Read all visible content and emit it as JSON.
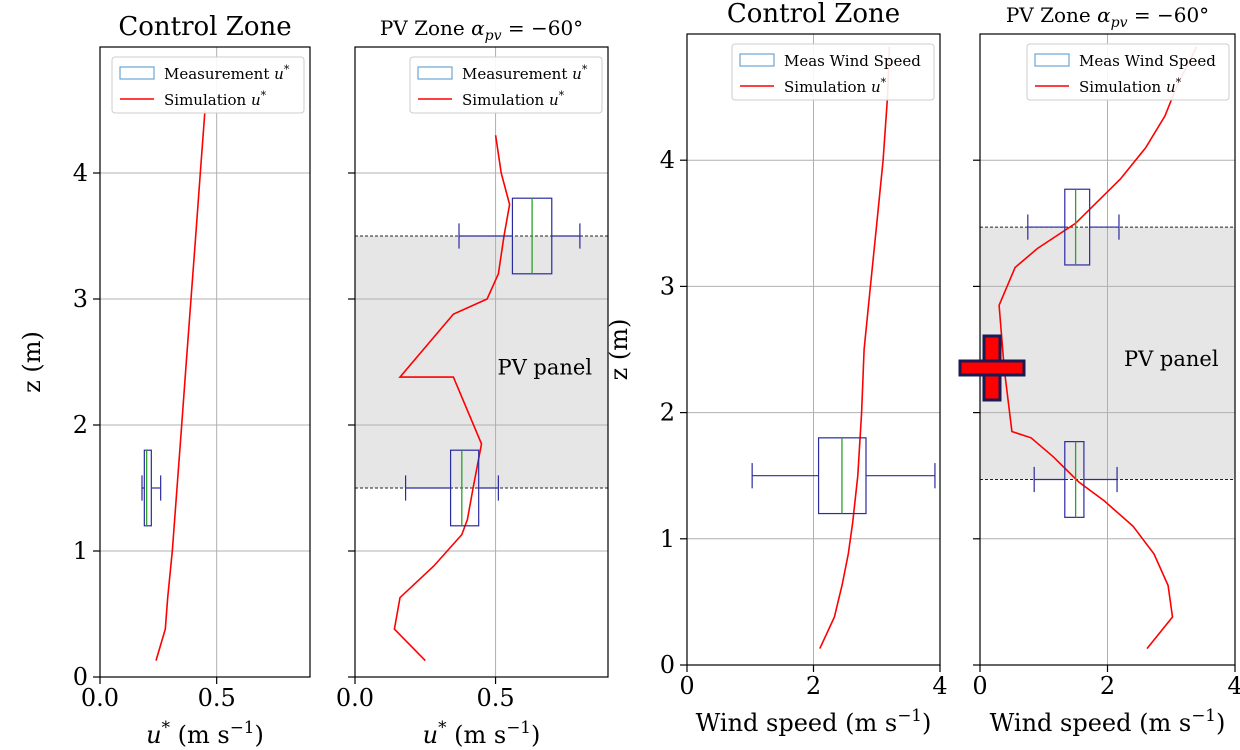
{
  "shared": {
    "ylabel": "z (m)",
    "band_label": "PV panel",
    "colors": {
      "sim_line": "#ff0000",
      "box_edge": "#2b2ba0",
      "median": "#2ca02c",
      "band_fill": "#e6e6e6",
      "legend_patch": "#6aa6d6",
      "grid": "#b0b0b0"
    }
  },
  "chart_data": [
    {
      "type": "box+line",
      "title": "Control Zone",
      "xlabel": "u* (m s−1)",
      "xlim": [
        0,
        0.9
      ],
      "ylim": [
        0,
        5
      ],
      "xticks": [
        0.0,
        0.5
      ],
      "xtick_labels": [
        "0.0",
        "0.5"
      ],
      "yticks": [
        0,
        1,
        2,
        3,
        4
      ],
      "ytick_labels": [
        "0",
        "1",
        "2",
        "3",
        "4"
      ],
      "legend": [
        "Measurement u*",
        "Simulation u*"
      ],
      "legend_position": "top-right",
      "grid": true,
      "band": null,
      "boxes": [
        {
          "z": 1.5,
          "whislo": 0.18,
          "q1": 0.19,
          "med": 0.2,
          "q3": 0.22,
          "whishi": 0.26,
          "half": 0.3
        }
      ],
      "simulation": {
        "x": [
          0.24,
          0.28,
          0.29,
          0.31,
          0.33,
          0.35,
          0.37,
          0.39,
          0.41,
          0.43,
          0.45
        ],
        "z": [
          0.13,
          0.38,
          0.63,
          1.0,
          1.5,
          2.0,
          2.5,
          3.0,
          3.5,
          4.0,
          4.5
        ]
      }
    },
    {
      "type": "box+line",
      "title": "PV Zone",
      "title_math": "αpv = −60°",
      "xlabel": "u* (m s−1)",
      "xlim": [
        0,
        0.9
      ],
      "ylim": [
        0,
        5
      ],
      "xticks": [
        0.0,
        0.5
      ],
      "xtick_labels": [
        "0.0",
        "0.5"
      ],
      "yticks": [
        0,
        1,
        2,
        3,
        4
      ],
      "ytick_labels": [],
      "legend": [
        "Measurement u*",
        "Simulation u*"
      ],
      "legend_position": "top-right",
      "grid": true,
      "band": [
        1.5,
        3.5
      ],
      "boxes": [
        {
          "z": 1.5,
          "whislo": 0.18,
          "q1": 0.34,
          "med": 0.38,
          "q3": 0.44,
          "whishi": 0.51,
          "half": 0.3
        },
        {
          "z": 3.5,
          "whislo": 0.37,
          "q1": 0.56,
          "med": 0.63,
          "q3": 0.7,
          "whishi": 0.8,
          "half": 0.3
        }
      ],
      "simulation": {
        "x": [
          0.25,
          0.14,
          0.16,
          0.28,
          0.38,
          0.4,
          0.42,
          0.45,
          0.35,
          0.16,
          0.35,
          0.47,
          0.51,
          0.53,
          0.55,
          0.52,
          0.5
        ],
        "z": [
          0.13,
          0.38,
          0.63,
          0.88,
          1.13,
          1.25,
          1.5,
          1.85,
          2.38,
          2.38,
          2.88,
          3.0,
          3.2,
          3.5,
          3.75,
          4.0,
          4.3
        ]
      }
    },
    {
      "type": "box+line",
      "title": "Control Zone",
      "xlabel": "Wind speed (m s−1)",
      "xlim": [
        0,
        4
      ],
      "ylim": [
        0,
        5
      ],
      "xticks": [
        0,
        2,
        4
      ],
      "xtick_labels": [
        "0",
        "2",
        "4"
      ],
      "yticks": [
        0,
        1,
        2,
        3,
        4
      ],
      "ytick_labels": [
        "0",
        "1",
        "2",
        "3",
        "4"
      ],
      "legend": [
        "Meas Wind Speed",
        "Simulation u*"
      ],
      "legend_position": "top-right",
      "grid": true,
      "band": null,
      "boxes": [
        {
          "z": 1.5,
          "whislo": 1.03,
          "q1": 2.08,
          "med": 2.45,
          "q3": 2.83,
          "whishi": 3.92,
          "half": 0.3
        }
      ],
      "simulation": {
        "x": [
          2.1,
          2.33,
          2.45,
          2.55,
          2.62,
          2.7,
          2.76,
          2.8,
          2.9,
          3.0,
          3.1,
          3.17,
          3.2
        ],
        "z": [
          0.13,
          0.38,
          0.63,
          0.88,
          1.13,
          1.5,
          2.0,
          2.5,
          3.0,
          3.5,
          4.0,
          4.5,
          4.9
        ]
      }
    },
    {
      "type": "box+line",
      "title": "PV Zone",
      "title_math": "αpv = −60°",
      "xlabel": "Wind speed (m s−1)",
      "xlim": [
        0,
        4
      ],
      "ylim": [
        0,
        5
      ],
      "xticks": [
        0,
        2,
        4
      ],
      "xtick_labels": [
        "0",
        "2",
        "4"
      ],
      "yticks": [
        0,
        1,
        2,
        3,
        4
      ],
      "ytick_labels": [],
      "legend": [
        "Meas Wind Speed",
        "Simulation u*"
      ],
      "legend_position": "top-right",
      "grid": true,
      "band": [
        1.47,
        3.47
      ],
      "boxes": [
        {
          "z": 1.47,
          "whislo": 0.85,
          "q1": 1.33,
          "med": 1.5,
          "q3": 1.63,
          "whishi": 2.15,
          "half": 0.3
        },
        {
          "z": 3.47,
          "whislo": 0.75,
          "q1": 1.33,
          "med": 1.5,
          "q3": 1.72,
          "whishi": 2.18,
          "half": 0.3
        }
      ],
      "simulation": {
        "x": [
          2.62,
          3.02,
          2.95,
          2.73,
          2.4,
          1.95,
          1.55,
          1.15,
          0.8,
          0.5,
          0.38,
          0.3,
          0.55,
          0.9,
          1.5,
          2.2,
          2.6,
          2.9,
          3.1,
          3.4
        ],
        "z": [
          0.13,
          0.38,
          0.63,
          0.88,
          1.1,
          1.3,
          1.45,
          1.65,
          1.8,
          1.85,
          2.35,
          2.85,
          3.15,
          3.3,
          3.5,
          3.85,
          4.1,
          4.35,
          4.6,
          4.9
        ]
      }
    }
  ]
}
